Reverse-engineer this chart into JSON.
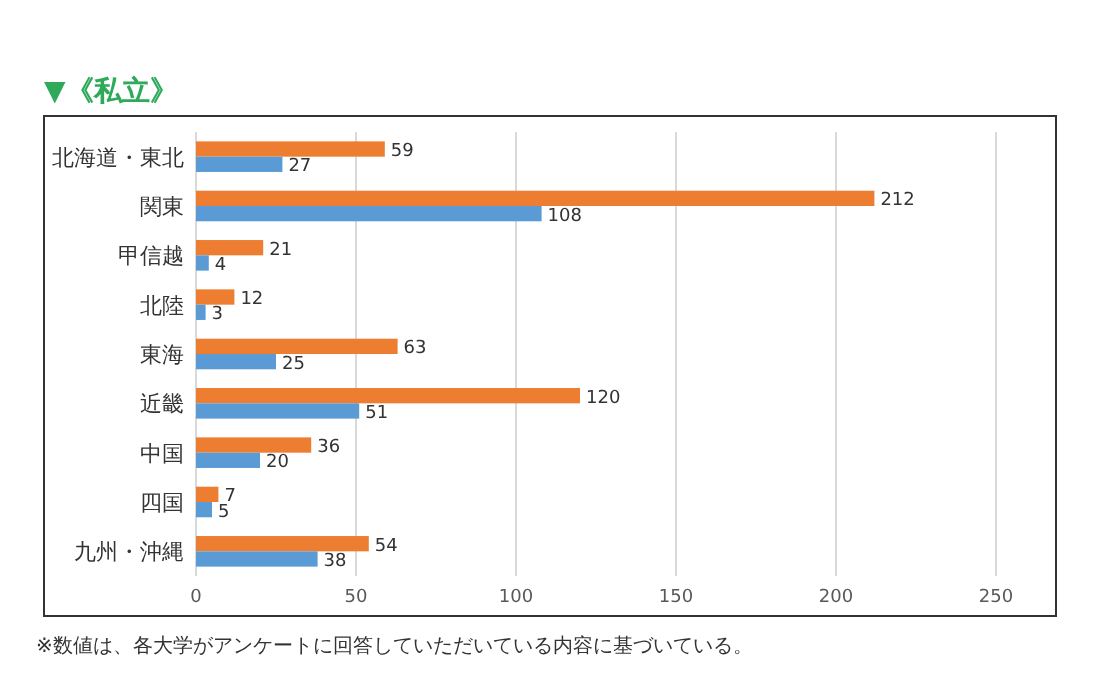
{
  "chart_data": {
    "type": "bar",
    "orientation": "horizontal",
    "title": "▼《私立》",
    "categories": [
      "北海道・東北",
      "関東",
      "甲信越",
      "北陸",
      "東海",
      "近畿",
      "中国",
      "四国",
      "九州・沖縄"
    ],
    "series": [
      {
        "color": "#ed7d31",
        "values": [
          59,
          212,
          21,
          12,
          63,
          120,
          36,
          7,
          54
        ]
      },
      {
        "color": "#5b9bd5",
        "values": [
          27,
          108,
          4,
          3,
          25,
          51,
          20,
          5,
          38
        ]
      }
    ],
    "xlim": [
      0,
      250
    ],
    "xticks": [
      0,
      50,
      100,
      150,
      200,
      250
    ],
    "grid": "x",
    "data_labels": true,
    "annotations": [
      "※数値は、各大学がアンケートに回答していただいている内容に基づいている。"
    ]
  }
}
